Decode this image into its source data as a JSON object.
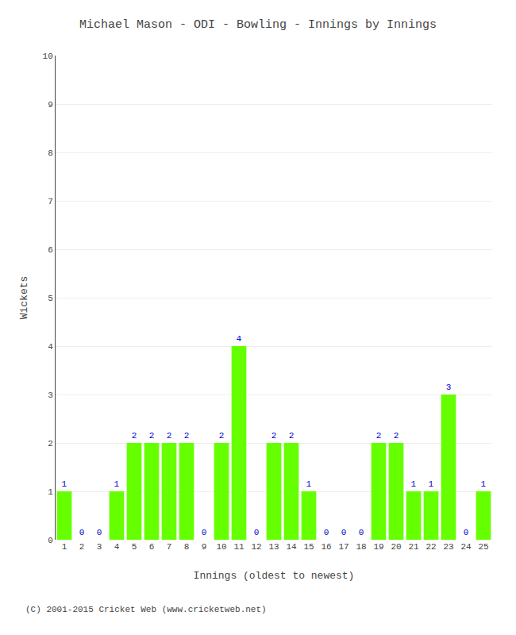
{
  "chart_data": {
    "type": "bar",
    "title": "Michael Mason - ODI - Bowling - Innings by Innings",
    "xlabel": "Innings (oldest to newest)",
    "ylabel": "Wickets",
    "categories": [
      "1",
      "2",
      "3",
      "4",
      "5",
      "6",
      "7",
      "8",
      "9",
      "10",
      "11",
      "12",
      "13",
      "14",
      "15",
      "16",
      "17",
      "18",
      "19",
      "20",
      "21",
      "22",
      "23",
      "24",
      "25"
    ],
    "values": [
      1,
      0,
      0,
      1,
      2,
      2,
      2,
      2,
      0,
      2,
      4,
      0,
      2,
      2,
      1,
      0,
      0,
      0,
      2,
      2,
      1,
      1,
      3,
      0,
      1
    ],
    "color": "#66ff00",
    "data_labels": true,
    "ylim": [
      0,
      10
    ],
    "yticks": [
      0,
      1,
      2,
      3,
      4,
      5,
      6,
      7,
      8,
      9,
      10
    ],
    "grid": true,
    "annotations": [
      "(C) 2001-2015 Cricket Web (www.cricketweb.net)"
    ]
  }
}
